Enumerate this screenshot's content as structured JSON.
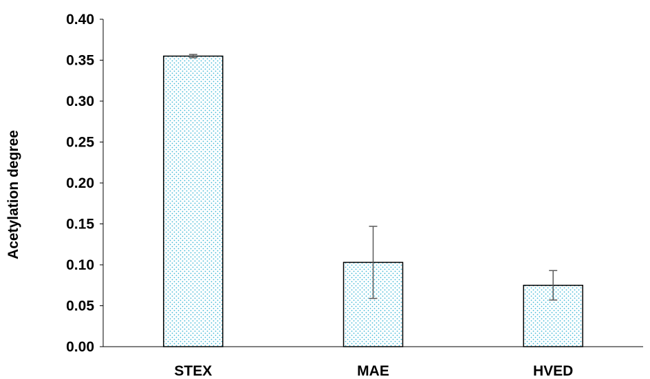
{
  "chart_data": {
    "type": "bar",
    "title": "",
    "xlabel": "",
    "ylabel": "Acetylation degree",
    "categories": [
      "STEX",
      "MAE",
      "HVED"
    ],
    "values": [
      0.355,
      0.103,
      0.075
    ],
    "errors": [
      0.002,
      0.044,
      0.018
    ],
    "ylim": [
      0,
      0.4
    ],
    "yticks": [
      0.0,
      0.05,
      0.1,
      0.15,
      0.2,
      0.25,
      0.3,
      0.35,
      0.4
    ],
    "ytick_labels": [
      "0.00",
      "0.05",
      "0.10",
      "0.15",
      "0.20",
      "0.25",
      "0.30",
      "0.35",
      "0.40"
    ],
    "grid": false,
    "legend": "none",
    "bar_fill_pattern": "dotted",
    "colors": {
      "bar_dot": "#3fb8d6",
      "bar_outline": "#000000",
      "bar_background": "#ffffff",
      "error_bar": "#595959",
      "axis": "#000000"
    }
  }
}
